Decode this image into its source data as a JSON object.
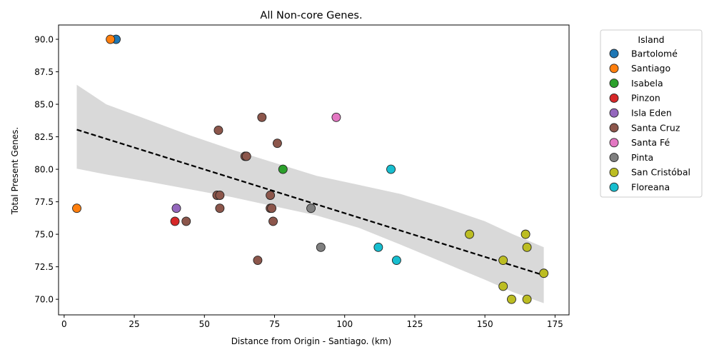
{
  "chart_data": {
    "type": "scatter",
    "title": "All Non-core Genes.",
    "xlabel": "Distance from Origin - Santiago. (km)",
    "ylabel": "Total Present Genes.",
    "xlim": [
      -2,
      180
    ],
    "ylim": [
      68.8,
      91.1
    ],
    "xticks": [
      0,
      25,
      50,
      75,
      100,
      125,
      150,
      175
    ],
    "yticks": [
      70.0,
      72.5,
      75.0,
      77.5,
      80.0,
      82.5,
      85.0,
      87.5,
      90.0
    ],
    "ytick_labels": [
      "70.0",
      "72.5",
      "75.0",
      "77.5",
      "80.0",
      "82.5",
      "85.0",
      "87.5",
      "90.0"
    ],
    "legend": {
      "title": "Island",
      "placement": "outside-right-top"
    },
    "series": [
      {
        "name": "Bartolomé",
        "color": "#1f77b4",
        "points": [
          [
            18.5,
            90
          ]
        ]
      },
      {
        "name": "Santiago",
        "color": "#ff7f0e",
        "points": [
          [
            16.5,
            90
          ],
          [
            4.5,
            77
          ]
        ]
      },
      {
        "name": "Isabela",
        "color": "#2ca02c",
        "points": [
          [
            78,
            80
          ]
        ]
      },
      {
        "name": "Pinzon",
        "color": "#d62728",
        "points": [
          [
            39.5,
            76
          ]
        ]
      },
      {
        "name": "Isla Eden",
        "color": "#9467bd",
        "points": [
          [
            40,
            77
          ]
        ]
      },
      {
        "name": "Santa Cruz",
        "color": "#8c564b",
        "points": [
          [
            70.5,
            84
          ],
          [
            55,
            83
          ],
          [
            76,
            82
          ],
          [
            64.5,
            81
          ],
          [
            65,
            81
          ],
          [
            54.5,
            78
          ],
          [
            55.5,
            78
          ],
          [
            73.5,
            78
          ],
          [
            55.5,
            77
          ],
          [
            73.5,
            77
          ],
          [
            74,
            77
          ],
          [
            43.5,
            76
          ],
          [
            74.5,
            76
          ],
          [
            69,
            73
          ]
        ]
      },
      {
        "name": "Santa Fé",
        "color": "#e377c2",
        "points": [
          [
            97,
            84
          ]
        ]
      },
      {
        "name": "Pinta",
        "color": "#7f7f7f",
        "points": [
          [
            88,
            77
          ],
          [
            91.5,
            74
          ]
        ]
      },
      {
        "name": "San Cristóbal",
        "color": "#bcbd22",
        "points": [
          [
            144.5,
            75
          ],
          [
            164.5,
            75
          ],
          [
            165,
            74
          ],
          [
            156.5,
            73
          ],
          [
            171,
            72
          ],
          [
            156.5,
            71
          ],
          [
            159.5,
            70
          ],
          [
            165,
            70
          ]
        ]
      },
      {
        "name": "Floreana",
        "color": "#17becf",
        "points": [
          [
            116.5,
            80
          ],
          [
            112,
            74
          ],
          [
            118.5,
            73
          ]
        ]
      }
    ],
    "regression": {
      "style": "dashed black line with grey confidence band",
      "x": [
        4.5,
        171
      ],
      "y": [
        83.05,
        71.85
      ],
      "ci_x": [
        4.5,
        15,
        30,
        45,
        60,
        75,
        90,
        105,
        120,
        135,
        150,
        160,
        171
      ],
      "ci_lower": [
        80.05,
        79.6,
        79.05,
        78.45,
        77.85,
        77.15,
        76.45,
        75.5,
        74.2,
        72.85,
        71.5,
        70.55,
        69.7
      ],
      "ci_upper": [
        86.5,
        85.0,
        83.8,
        82.6,
        81.5,
        80.5,
        79.5,
        78.8,
        78.1,
        77.1,
        76.0,
        75.0,
        74.0
      ]
    }
  }
}
